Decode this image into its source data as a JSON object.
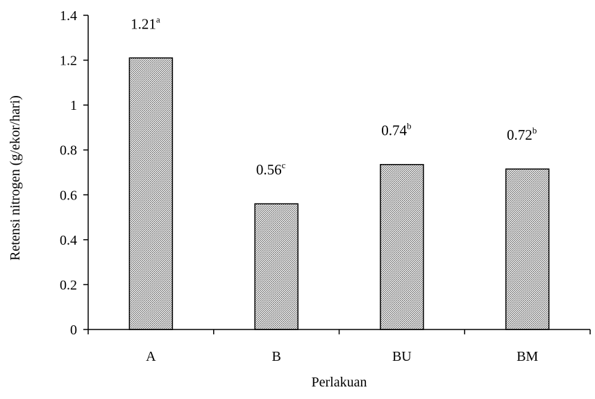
{
  "chart_data": {
    "type": "bar",
    "title": "",
    "xlabel": "Perlakuan",
    "ylabel": "Retensi nitrogen (g/ekor/hari)",
    "categories": [
      "A",
      "B",
      "BU",
      "BM"
    ],
    "values": [
      1.21,
      0.56,
      0.735,
      0.715
    ],
    "data_labels": [
      {
        "value": "1.21",
        "superscript": "a"
      },
      {
        "value": "0.56",
        "superscript": "c"
      },
      {
        "value": "0.74",
        "superscript": "b"
      },
      {
        "value": "0.72",
        "superscript": "b"
      }
    ],
    "ylim": [
      0,
      1.4
    ],
    "yticks": [
      "0",
      "0.2",
      "0.4",
      "0.6",
      "0.8",
      "1",
      "1.2",
      "1.4"
    ],
    "grid": false,
    "legend": "none",
    "bar_fill": "hatched gray",
    "colors": {
      "bar_stroke": "#000000",
      "bar_pattern_dark": "#555555",
      "bar_pattern_light": "#e6e6e6"
    }
  }
}
